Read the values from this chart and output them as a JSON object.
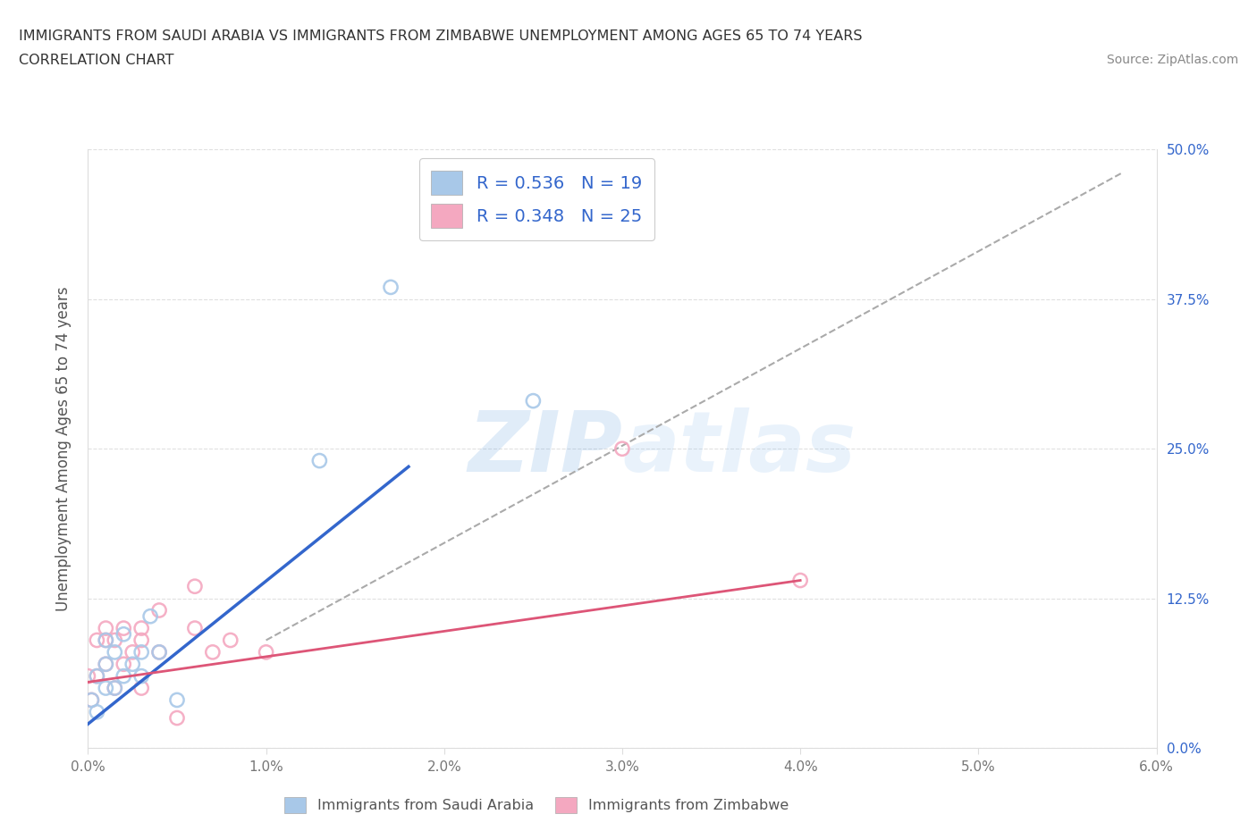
{
  "title_line1": "IMMIGRANTS FROM SAUDI ARABIA VS IMMIGRANTS FROM ZIMBABWE UNEMPLOYMENT AMONG AGES 65 TO 74 YEARS",
  "title_line2": "CORRELATION CHART",
  "source_text": "Source: ZipAtlas.com",
  "xlabel_saudi": "Immigrants from Saudi Arabia",
  "xlabel_zimbabwe": "Immigrants from Zimbabwe",
  "ylabel": "Unemployment Among Ages 65 to 74 years",
  "xlim": [
    0.0,
    0.06
  ],
  "ylim": [
    0.0,
    0.5
  ],
  "xticks": [
    0.0,
    0.01,
    0.02,
    0.03,
    0.04,
    0.05,
    0.06
  ],
  "yticks": [
    0.0,
    0.125,
    0.25,
    0.375,
    0.5
  ],
  "xtick_labels": [
    "0.0%",
    "1.0%",
    "2.0%",
    "3.0%",
    "4.0%",
    "5.0%",
    "6.0%"
  ],
  "ytick_labels": [
    "0.0%",
    "12.5%",
    "25.0%",
    "37.5%",
    "50.0%"
  ],
  "saudi_R": 0.536,
  "saudi_N": 19,
  "zimbabwe_R": 0.348,
  "zimbabwe_N": 25,
  "saudi_color": "#a8c8e8",
  "zimbabwe_color": "#f4a8c0",
  "saudi_line_color": "#3366cc",
  "zimbabwe_line_color": "#dd5577",
  "ref_line_color": "#aaaaaa",
  "background_color": "#ffffff",
  "watermark_color": "#d0e8f8",
  "saudi_x": [
    0.0002,
    0.0005,
    0.0005,
    0.001,
    0.001,
    0.001,
    0.0015,
    0.0015,
    0.002,
    0.002,
    0.0025,
    0.003,
    0.003,
    0.0035,
    0.004,
    0.005,
    0.013,
    0.017,
    0.025
  ],
  "saudi_y": [
    0.04,
    0.06,
    0.03,
    0.05,
    0.07,
    0.09,
    0.05,
    0.08,
    0.06,
    0.095,
    0.07,
    0.06,
    0.08,
    0.11,
    0.08,
    0.04,
    0.24,
    0.385,
    0.29
  ],
  "zimbabwe_x": [
    0.0,
    0.0002,
    0.0005,
    0.0005,
    0.001,
    0.001,
    0.001,
    0.0015,
    0.0015,
    0.002,
    0.002,
    0.0025,
    0.003,
    0.003,
    0.003,
    0.004,
    0.004,
    0.005,
    0.006,
    0.006,
    0.007,
    0.008,
    0.01,
    0.03,
    0.04
  ],
  "zimbabwe_y": [
    0.06,
    0.04,
    0.06,
    0.09,
    0.07,
    0.09,
    0.1,
    0.05,
    0.09,
    0.07,
    0.1,
    0.08,
    0.05,
    0.09,
    0.1,
    0.08,
    0.115,
    0.025,
    0.1,
    0.135,
    0.08,
    0.09,
    0.08,
    0.25,
    0.14
  ],
  "ref_line_x": [
    0.01,
    0.058
  ],
  "ref_line_y": [
    0.09,
    0.48
  ],
  "saudi_line_x": [
    0.0,
    0.018
  ],
  "saudi_line_y": [
    0.02,
    0.235
  ],
  "zimbabwe_line_x": [
    0.0,
    0.04
  ],
  "zimbabwe_line_y": [
    0.055,
    0.14
  ]
}
